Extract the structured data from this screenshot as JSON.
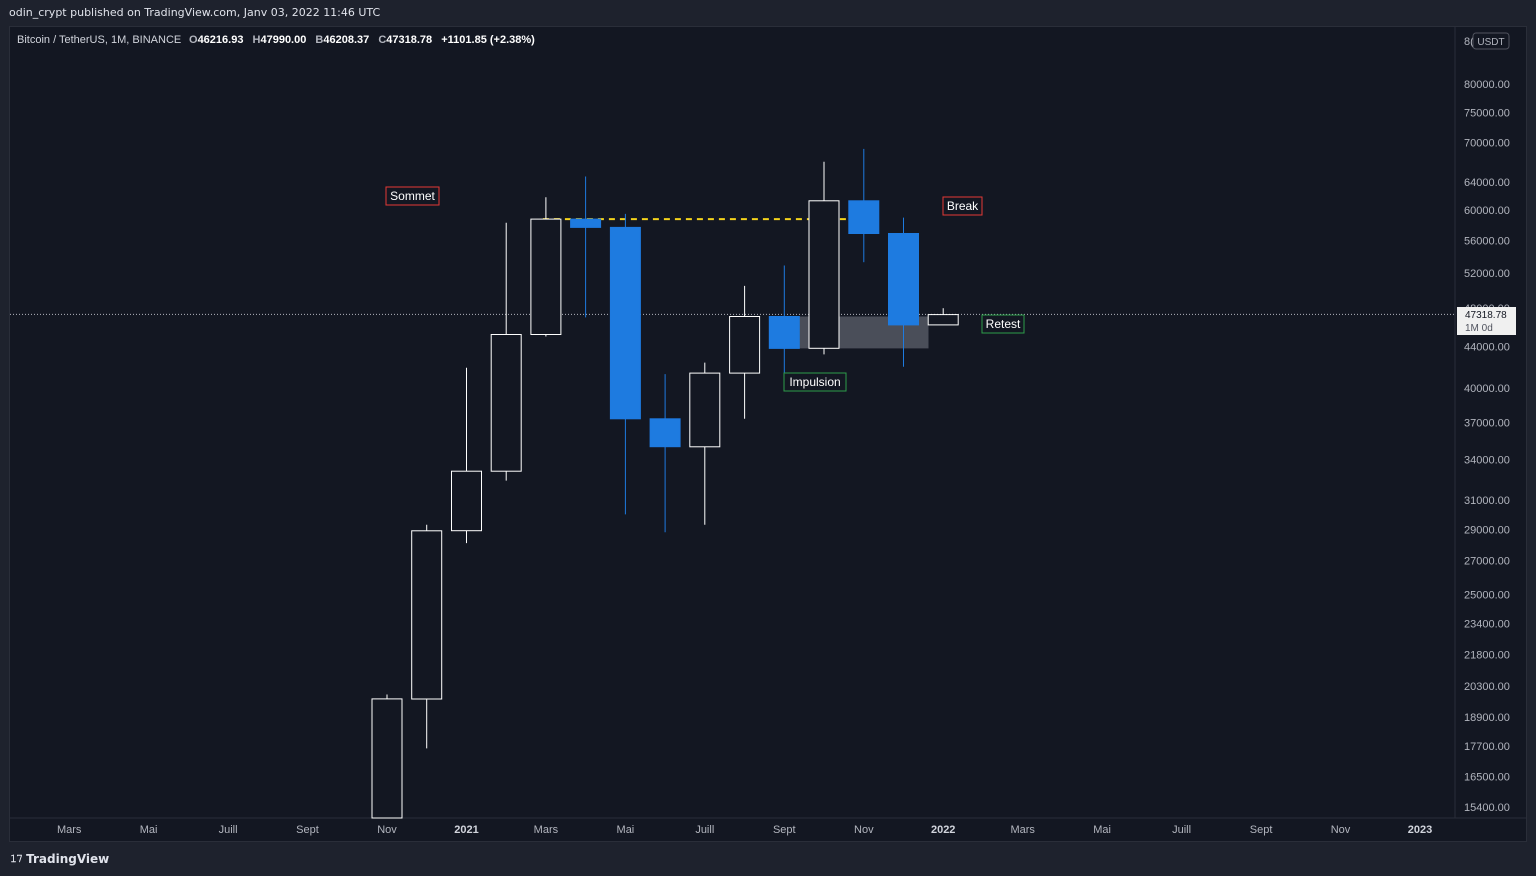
{
  "header": {
    "published_text": "odin_crypt published on TradingView.com, Janv 03, 2022 11:46 UTC"
  },
  "legend": {
    "symbol": "Bitcoin / TetherUS, 1M, BINANCE",
    "open_label": "O",
    "open": "46216.93",
    "high_label": "H",
    "high": "47990.00",
    "low_label": "B",
    "low": "46208.37",
    "close_label": "C",
    "close": "47318.78",
    "change": "+1101.85 (+2.38%)"
  },
  "currency_badge": "USDT",
  "currency_badge_prefix": "8(",
  "price_marker": {
    "price": "47318.78",
    "countdown": "1M 0d"
  },
  "footer": {
    "brand": "TradingView"
  },
  "colors": {
    "background": "#131722",
    "up_candle_border": "#ffffff",
    "down_candle_fill": "#1e7be0",
    "dashed_level": "#f5d31b",
    "zone_fill": "#787b86",
    "label_red_border": "#e53935",
    "label_green_border": "#2e9e4a"
  },
  "chart_data": {
    "type": "candlestick",
    "y_scale": "log",
    "ylim": [
      14800,
      90000
    ],
    "y_ticks": [
      "80000.00",
      "75000.00",
      "70000.00",
      "64000.00",
      "60000.00",
      "56000.00",
      "52000.00",
      "48000.00",
      "44000.00",
      "40000.00",
      "37000.00",
      "34000.00",
      "31000.00",
      "29000.00",
      "27000.00",
      "25000.00",
      "23400.00",
      "21800.00",
      "20300.00",
      "18900.00",
      "17700.00",
      "16500.00",
      "15400.00"
    ],
    "x_ticks": [
      "Mars",
      "Mai",
      "Juill",
      "Sept",
      "Nov",
      "2021",
      "Mars",
      "Mai",
      "Juill",
      "Sept",
      "Nov",
      "2022",
      "Mars",
      "Mai",
      "Juill",
      "Sept",
      "Nov",
      "2023"
    ],
    "candles": [
      {
        "date": "2020-11",
        "o": 13800,
        "h": 19900,
        "l": 13600,
        "c": 19700
      },
      {
        "date": "2020-12",
        "o": 19700,
        "h": 29300,
        "l": 17600,
        "c": 28900
      },
      {
        "date": "2021-01",
        "o": 28900,
        "h": 41900,
        "l": 28100,
        "c": 33100
      },
      {
        "date": "2021-02",
        "o": 33100,
        "h": 58300,
        "l": 32400,
        "c": 45200
      },
      {
        "date": "2021-03",
        "o": 45200,
        "h": 61800,
        "l": 45000,
        "c": 58800
      },
      {
        "date": "2021-04",
        "o": 58800,
        "h": 64800,
        "l": 47000,
        "c": 57700
      },
      {
        "date": "2021-05",
        "o": 57700,
        "h": 59500,
        "l": 30000,
        "c": 37300
      },
      {
        "date": "2021-06",
        "o": 37300,
        "h": 41300,
        "l": 28800,
        "c": 35000
      },
      {
        "date": "2021-07",
        "o": 35000,
        "h": 42400,
        "l": 29300,
        "c": 41400
      },
      {
        "date": "2021-08",
        "o": 41400,
        "h": 50500,
        "l": 37300,
        "c": 47100
      },
      {
        "date": "2021-09",
        "o": 47100,
        "h": 52900,
        "l": 40000,
        "c": 43800
      },
      {
        "date": "2021-10",
        "o": 43800,
        "h": 67000,
        "l": 43200,
        "c": 61300
      },
      {
        "date": "2021-11",
        "o": 61300,
        "h": 69000,
        "l": 53300,
        "c": 56900
      },
      {
        "date": "2021-12",
        "o": 56900,
        "h": 59000,
        "l": 42000,
        "c": 46200
      },
      {
        "date": "2022-01",
        "o": 46200,
        "h": 48000,
        "l": 46200,
        "c": 47300
      }
    ],
    "last_price": 47318.78,
    "annotations": [
      {
        "text": "Sommet",
        "color": "red"
      },
      {
        "text": "Break",
        "color": "red"
      },
      {
        "text": "Retest",
        "color": "green"
      },
      {
        "text": "Impulsion",
        "color": "green"
      }
    ],
    "level_line": {
      "price": 58800,
      "from": "2021-03",
      "to": "2021-11",
      "style": "dashed"
    },
    "zone": {
      "from": "2021-09",
      "to": "2021-12",
      "low": 43800,
      "high": 47100
    }
  }
}
